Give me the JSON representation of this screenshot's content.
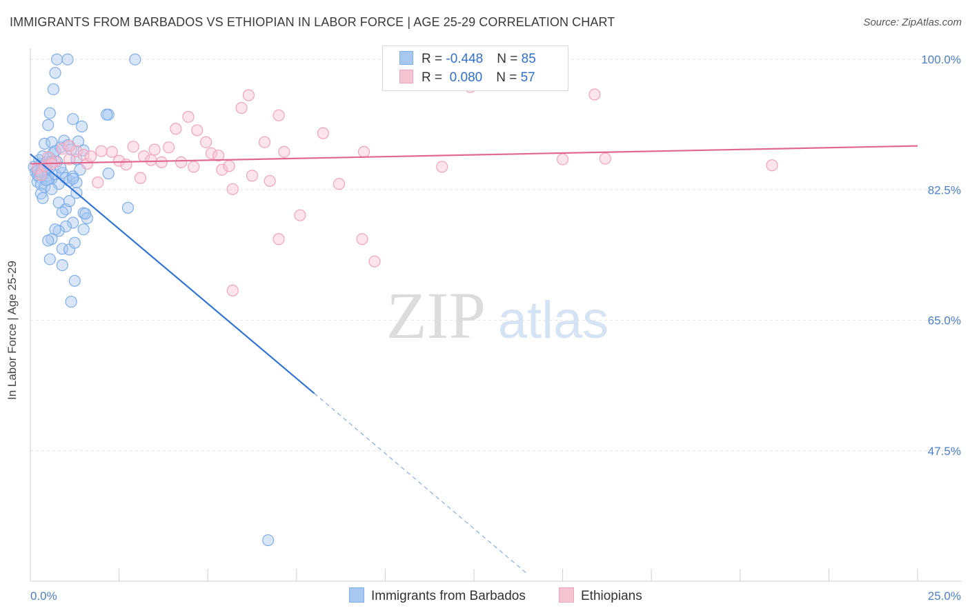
{
  "chart_data": {
    "type": "scatter",
    "title": "IMMIGRANTS FROM BARBADOS VS ETHIOPIAN IN LABOR FORCE | AGE 25-29 CORRELATION CHART",
    "source": "Source: ZipAtlas.com",
    "ylabel": "In Labor Force | Age 25-29",
    "xlabel": "",
    "xlim": [
      0,
      25
    ],
    "ylim": [
      30,
      101.5
    ],
    "x_tick_labels": [
      "0.0%",
      "25.0%"
    ],
    "y_ticks": [
      {
        "value": 100.0,
        "label": "100.0%"
      },
      {
        "value": 82.5,
        "label": "82.5%"
      },
      {
        "value": 65.0,
        "label": "65.0%"
      },
      {
        "value": 47.5,
        "label": "47.5%"
      }
    ],
    "watermark": {
      "zip": "ZIP",
      "atlas": "atlas"
    },
    "legend": {
      "rows": [
        {
          "r_label": "R = ",
          "r_value": "-0.448",
          "n_label": "N = ",
          "n_value": "85"
        },
        {
          "r_label": "R = ",
          "r_value": " 0.080",
          "n_label": "N = ",
          "n_value": "57"
        }
      ]
    },
    "series": [
      {
        "name": "Immigrants from Barbados",
        "color": "#7eaee9",
        "fill": "#a9c8f0",
        "line_color": "#2f74d4",
        "trend": {
          "x0": 0.0,
          "y0": 87.3,
          "x1": 8.0,
          "y1": 55.2,
          "dash_x1": 14.0,
          "dash_y1": 31.0
        },
        "points": [
          [
            0.1,
            85.6
          ],
          [
            0.15,
            84.9
          ],
          [
            0.2,
            85.3
          ],
          [
            0.25,
            84.2
          ],
          [
            0.3,
            86.0
          ],
          [
            0.35,
            85.1
          ],
          [
            0.4,
            84.7
          ],
          [
            0.45,
            85.8
          ],
          [
            0.5,
            84.4
          ],
          [
            0.55,
            85.5
          ],
          [
            0.6,
            84.0
          ],
          [
            0.2,
            83.6
          ],
          [
            0.3,
            83.2
          ],
          [
            0.4,
            82.9
          ],
          [
            0.5,
            83.9
          ],
          [
            0.7,
            84.6
          ],
          [
            0.8,
            83.3
          ],
          [
            0.9,
            84.8
          ],
          [
            1.0,
            84.1
          ],
          [
            1.1,
            83.7
          ],
          [
            1.2,
            84.3
          ],
          [
            1.3,
            83.5
          ],
          [
            0.25,
            86.5
          ],
          [
            0.35,
            87.0
          ],
          [
            0.45,
            86.2
          ],
          [
            0.55,
            86.8
          ],
          [
            0.65,
            87.5
          ],
          [
            0.75,
            86.3
          ],
          [
            0.85,
            88.2
          ],
          [
            0.95,
            89.1
          ],
          [
            1.05,
            88.5
          ],
          [
            1.15,
            87.9
          ],
          [
            0.4,
            88.7
          ],
          [
            0.5,
            91.2
          ],
          [
            0.6,
            88.9
          ],
          [
            0.7,
            87.7
          ],
          [
            0.3,
            82.0
          ],
          [
            0.35,
            81.4
          ],
          [
            0.6,
            82.6
          ],
          [
            0.8,
            80.8
          ],
          [
            1.0,
            79.9
          ],
          [
            0.9,
            79.5
          ],
          [
            1.1,
            81.0
          ],
          [
            1.3,
            82.1
          ],
          [
            1.4,
            85.2
          ],
          [
            1.5,
            87.8
          ],
          [
            1.5,
            79.4
          ],
          [
            1.2,
            78.1
          ],
          [
            1.0,
            77.6
          ],
          [
            0.8,
            77.0
          ],
          [
            0.7,
            77.2
          ],
          [
            0.6,
            75.9
          ],
          [
            0.5,
            75.7
          ],
          [
            0.9,
            74.6
          ],
          [
            1.1,
            74.5
          ],
          [
            1.5,
            77.2
          ],
          [
            1.6,
            78.7
          ],
          [
            0.55,
            73.2
          ],
          [
            0.9,
            72.4
          ],
          [
            1.25,
            75.4
          ],
          [
            1.25,
            70.3
          ],
          [
            1.15,
            67.5
          ],
          [
            1.3,
            86.6
          ],
          [
            1.35,
            89.0
          ],
          [
            1.55,
            79.3
          ],
          [
            2.2,
            84.7
          ],
          [
            2.2,
            92.6
          ],
          [
            2.15,
            92.6
          ],
          [
            2.75,
            80.1
          ],
          [
            1.45,
            91.0
          ],
          [
            1.2,
            92.0
          ],
          [
            0.55,
            92.8
          ],
          [
            0.65,
            96.0
          ],
          [
            0.7,
            98.2
          ],
          [
            0.75,
            100.0
          ],
          [
            1.05,
            100.0
          ],
          [
            2.95,
            100.0
          ],
          [
            6.7,
            35.5
          ],
          [
            0.2,
            84.5
          ],
          [
            0.45,
            83.8
          ],
          [
            0.85,
            85.5
          ],
          [
            1.2,
            84.0
          ],
          [
            0.2,
            85.0
          ],
          [
            0.3,
            84.9
          ],
          [
            0.6,
            86.3
          ]
        ]
      },
      {
        "name": "Ethiopians",
        "color": "#f0a3bd",
        "fill": "#f6c3d3",
        "line_color": "#e0678f",
        "trend": {
          "x0": 0.0,
          "y0": 86.0,
          "x1": 25.0,
          "y1": 88.4
        },
        "points": [
          [
            0.2,
            85.4
          ],
          [
            0.3,
            84.5
          ],
          [
            0.4,
            85.7
          ],
          [
            0.5,
            86.9
          ],
          [
            0.7,
            86.3
          ],
          [
            0.9,
            88.0
          ],
          [
            1.1,
            86.6
          ],
          [
            1.3,
            87.7
          ],
          [
            1.5,
            87.2
          ],
          [
            1.6,
            86.0
          ],
          [
            1.7,
            87.0
          ],
          [
            1.9,
            83.5
          ],
          [
            2.0,
            87.7
          ],
          [
            2.3,
            87.6
          ],
          [
            2.5,
            86.4
          ],
          [
            2.7,
            85.9
          ],
          [
            2.9,
            88.3
          ],
          [
            3.1,
            84.1
          ],
          [
            3.2,
            87.0
          ],
          [
            3.4,
            86.5
          ],
          [
            3.5,
            87.9
          ],
          [
            3.7,
            86.2
          ],
          [
            3.9,
            88.2
          ],
          [
            4.1,
            90.7
          ],
          [
            4.25,
            86.2
          ],
          [
            4.45,
            92.3
          ],
          [
            4.6,
            85.6
          ],
          [
            4.7,
            90.5
          ],
          [
            4.95,
            88.9
          ],
          [
            5.1,
            87.4
          ],
          [
            5.3,
            87.1
          ],
          [
            5.4,
            85.2
          ],
          [
            5.6,
            85.7
          ],
          [
            5.7,
            82.6
          ],
          [
            5.95,
            93.5
          ],
          [
            6.15,
            95.2
          ],
          [
            6.25,
            84.4
          ],
          [
            6.6,
            88.9
          ],
          [
            6.75,
            83.7
          ],
          [
            7.0,
            92.5
          ],
          [
            7.15,
            87.6
          ],
          [
            7.6,
            79.1
          ],
          [
            8.25,
            90.1
          ],
          [
            8.7,
            83.3
          ],
          [
            9.4,
            87.6
          ],
          [
            9.35,
            75.9
          ],
          [
            9.7,
            72.9
          ],
          [
            5.7,
            69.0
          ],
          [
            7.0,
            75.9
          ],
          [
            11.6,
            85.6
          ],
          [
            12.4,
            96.3
          ],
          [
            15.0,
            86.6
          ],
          [
            15.9,
            95.3
          ],
          [
            16.2,
            86.7
          ],
          [
            20.9,
            85.8
          ],
          [
            1.1,
            88.4
          ],
          [
            0.6,
            86.0
          ]
        ]
      }
    ]
  }
}
